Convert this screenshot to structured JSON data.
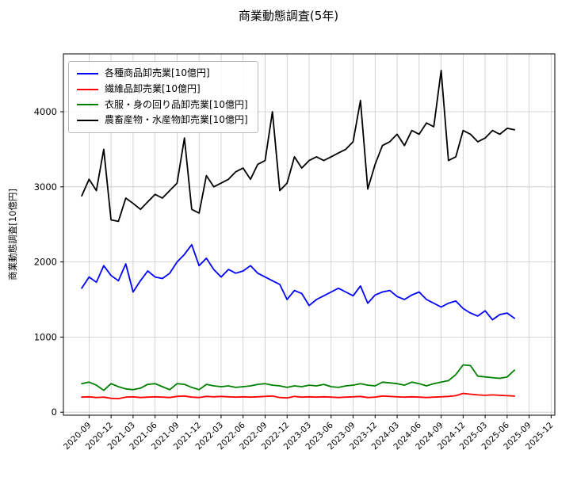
{
  "chart_data": {
    "type": "line",
    "title": "商業動態調査(5年)",
    "xlabel": "",
    "ylabel": "商業動態調査[10億円]",
    "grid": true,
    "legend_position": "upper left",
    "yticks": [
      0,
      1000,
      2000,
      3000,
      4000
    ],
    "ytick_labels": [
      "0",
      "1000",
      "2000",
      "3000",
      "4000"
    ],
    "ylim": [
      -40,
      4770
    ],
    "xtick_labels": [
      "2020-09",
      "2020-12",
      "2021-03",
      "2021-06",
      "2021-09",
      "2021-12",
      "2022-03",
      "2022-06",
      "2022-09",
      "2022-12",
      "2023-03",
      "2023-06",
      "2023-09",
      "2023-12",
      "2024-03",
      "2024-06",
      "2024-09",
      "2024-12",
      "2025-03",
      "2025-06",
      "2025-09",
      "2025-12"
    ],
    "x": [
      "2020-08",
      "2020-09",
      "2020-10",
      "2020-11",
      "2020-12",
      "2021-01",
      "2021-02",
      "2021-03",
      "2021-04",
      "2021-05",
      "2021-06",
      "2021-07",
      "2021-08",
      "2021-09",
      "2021-10",
      "2021-11",
      "2021-12",
      "2022-01",
      "2022-02",
      "2022-03",
      "2022-04",
      "2022-05",
      "2022-06",
      "2022-07",
      "2022-08",
      "2022-09",
      "2022-10",
      "2022-11",
      "2022-12",
      "2023-01",
      "2023-02",
      "2023-03",
      "2023-04",
      "2023-05",
      "2023-06",
      "2023-07",
      "2023-08",
      "2023-09",
      "2023-10",
      "2023-11",
      "2023-12",
      "2024-01",
      "2024-02",
      "2024-03",
      "2024-04",
      "2024-05",
      "2024-06",
      "2024-07",
      "2024-08",
      "2024-09",
      "2024-10",
      "2024-11",
      "2024-12",
      "2025-01",
      "2025-02",
      "2025-03",
      "2025-04",
      "2025-05",
      "2025-06",
      "2025-07"
    ],
    "series": [
      {
        "name": "各種商品卸売業[10億円]",
        "color": "#0000ff",
        "values": [
          1650,
          1800,
          1730,
          1950,
          1820,
          1750,
          1975,
          1600,
          1750,
          1880,
          1800,
          1780,
          1850,
          2000,
          2100,
          2230,
          1950,
          2050,
          1900,
          1800,
          1900,
          1850,
          1880,
          1950,
          1850,
          1800,
          1750,
          1700,
          1500,
          1620,
          1580,
          1420,
          1500,
          1550,
          1600,
          1650,
          1600,
          1550,
          1680,
          1450,
          1560,
          1600,
          1620,
          1540,
          1500,
          1560,
          1600,
          1500,
          1450,
          1400,
          1450,
          1480,
          1380,
          1320,
          1280,
          1350,
          1230,
          1300,
          1320,
          1250
        ]
      },
      {
        "name": "繊維品卸売業[10億円]",
        "color": "#ff0000",
        "values": [
          200,
          205,
          195,
          200,
          185,
          180,
          200,
          205,
          195,
          200,
          205,
          200,
          195,
          210,
          215,
          200,
          195,
          210,
          205,
          210,
          205,
          200,
          205,
          200,
          205,
          210,
          215,
          195,
          190,
          210,
          200,
          205,
          200,
          205,
          200,
          195,
          200,
          205,
          210,
          195,
          200,
          215,
          210,
          205,
          200,
          205,
          200,
          195,
          200,
          205,
          210,
          220,
          250,
          240,
          230,
          225,
          230,
          225,
          220,
          215
        ]
      },
      {
        "name": "衣服・身の回り品卸売業[10億円]",
        "color": "#008000",
        "values": [
          380,
          400,
          360,
          290,
          380,
          340,
          310,
          300,
          320,
          370,
          380,
          340,
          300,
          380,
          370,
          330,
          300,
          370,
          350,
          340,
          350,
          330,
          340,
          350,
          370,
          380,
          360,
          350,
          330,
          350,
          340,
          360,
          350,
          370,
          340,
          330,
          350,
          360,
          380,
          360,
          350,
          400,
          390,
          380,
          360,
          400,
          380,
          350,
          380,
          400,
          420,
          500,
          630,
          620,
          480,
          470,
          460,
          450,
          470,
          560
        ]
      },
      {
        "name": "農畜産物・水産物卸売業[10億円]",
        "color": "#000000",
        "values": [
          2880,
          3100,
          2950,
          3500,
          2560,
          2540,
          2850,
          2780,
          2700,
          2800,
          2900,
          2850,
          2950,
          3050,
          3650,
          2700,
          2650,
          3150,
          3000,
          3050,
          3100,
          3200,
          3250,
          3100,
          3300,
          3350,
          4000,
          2950,
          3050,
          3400,
          3250,
          3350,
          3400,
          3350,
          3400,
          3450,
          3500,
          3600,
          4150,
          2970,
          3300,
          3550,
          3600,
          3700,
          3550,
          3750,
          3700,
          3850,
          3800,
          4550,
          3350,
          3400,
          3750,
          3700,
          3600,
          3650,
          3750,
          3700,
          3780,
          3760
        ]
      }
    ]
  }
}
